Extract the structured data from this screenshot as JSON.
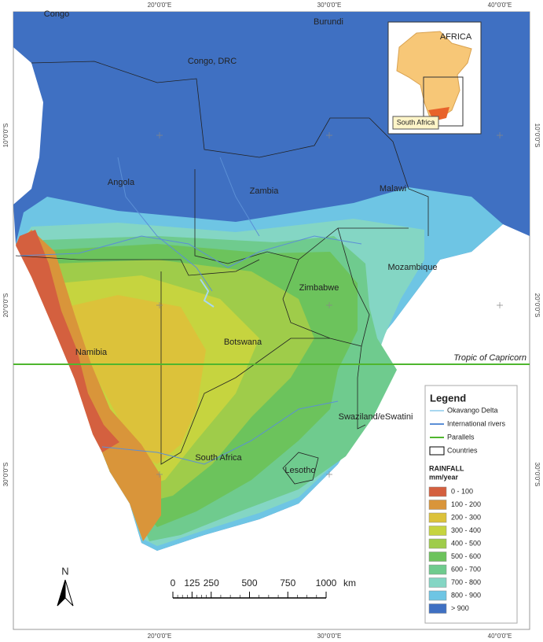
{
  "graticule": {
    "top": [
      "20°0'0\"E",
      "30°0'0\"E",
      "40°0'0\"E"
    ],
    "bottom": [
      "20°0'0\"E",
      "30°0'0\"E",
      "40°0'0\"E"
    ],
    "left": [
      "10°0'0\"S",
      "20°0'0\"S",
      "30°0'0\"S"
    ],
    "right": [
      "10°0'0\"S",
      "20°0'0\"S",
      "30°0'0\"S"
    ]
  },
  "country_labels": [
    "Congo",
    "Burundi",
    "Congo, DRC",
    "Angola",
    "Zambia",
    "Malawi",
    "Mozambique",
    "Zimbabwe",
    "Namibia",
    "Botswana",
    "Swaziland/eSwatini",
    "South Africa",
    "Lesotho"
  ],
  "tropic_label": "Tropic of Capricorn",
  "inset": {
    "title": "AFRICA",
    "label": "South Africa"
  },
  "legend": {
    "title": "Legend",
    "items": [
      "Okavango Delta",
      "International rivers",
      "Parallels",
      "Countries"
    ],
    "rainfall_title": "RAINFALL",
    "rainfall_unit": "mm/year",
    "classes": [
      {
        "label": "0 - 100",
        "color": "#d4603f"
      },
      {
        "label": "100 - 200",
        "color": "#d9953a"
      },
      {
        "label": "200 - 300",
        "color": "#dcc23a"
      },
      {
        "label": "300 - 400",
        "color": "#c6d43f"
      },
      {
        "label": "400 - 500",
        "color": "#9fcc4a"
      },
      {
        "label": "500 - 600",
        "color": "#6cc35c"
      },
      {
        "label": "600 - 700",
        "color": "#6fcb8e"
      },
      {
        "label": "700 - 800",
        "color": "#84d6c4"
      },
      {
        "label": "800 - 900",
        "color": "#6ec5e4"
      },
      {
        "label": "> 900",
        "color": "#3f70c2"
      }
    ]
  },
  "scale_bar": {
    "ticks": [
      0,
      125,
      250,
      500,
      750,
      1000
    ],
    "unit": "km"
  },
  "north_label": "N"
}
